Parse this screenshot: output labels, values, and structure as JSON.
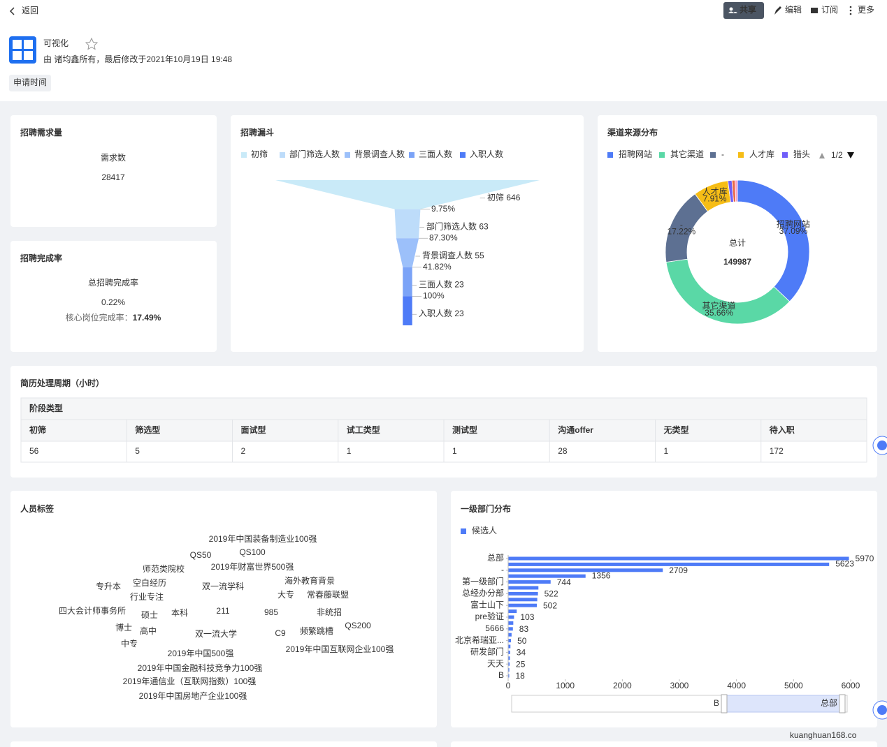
{
  "header": {
    "back": "返回",
    "actions": [
      "共享",
      "编辑",
      "订阅",
      "更多"
    ],
    "title": "可视化",
    "meta": "由 诸均鑫所有，最后修改于2021年10月19日 19:48",
    "filter": "申请时间"
  },
  "demand": {
    "title": "招聘需求量",
    "label": "需求数",
    "value": 28417
  },
  "completion": {
    "title": "招聘完成率",
    "label": "总招聘完成率",
    "value": "0.22%",
    "sub_label": "核心岗位完成率：",
    "sub_value": "17.49%"
  },
  "funnel": {
    "type": "funnel",
    "title": "招聘漏斗",
    "categories": [
      "初筛",
      "部门筛选人数",
      "背景调查人数",
      "三面人数",
      "入职人数"
    ],
    "values": [
      646,
      63,
      55,
      23,
      23
    ],
    "colors": [
      "#c9eaf8",
      "#bddcfa",
      "#9cc0fa",
      "#7ba3f7",
      "#4e7bf7"
    ],
    "rates": [
      9.75,
      87.3,
      41.82,
      100
    ],
    "rate_labels": [
      "9.75%",
      "87.30%",
      "41.82%",
      "100%"
    ]
  },
  "channel": {
    "type": "pie",
    "title": "渠道来源分布",
    "categories": [
      "招聘网站",
      "其它渠道",
      "-",
      "人才库",
      "猎头",
      null,
      null
    ],
    "values": [
      37.09,
      35.66,
      17.22,
      7.91,
      0.9,
      0.7,
      0.52
    ],
    "value_labels": [
      "37.09%",
      "35.66%",
      "17.22%",
      "7.91%",
      null,
      null,
      null
    ],
    "colors": [
      "#4e7bf7",
      "#5ad8a6",
      "#5d7092",
      "#f6bd16",
      "#6f5ef9",
      "#e8684a",
      "#ff9dc4"
    ],
    "legend_page": "1/2",
    "center_label": "总计",
    "total": 149987
  },
  "table": {
    "title": "简历处理周期（小时）",
    "group": "阶段类型",
    "columns": [
      "初筛",
      "筛选型",
      "面试型",
      "试工类型",
      "测试型",
      "沟通offer",
      "无类型",
      "待入职"
    ],
    "rows": [
      [
        56,
        5,
        2,
        1,
        1,
        28,
        1,
        172
      ]
    ]
  },
  "tags": {
    "title": "人员标签",
    "words": [
      {
        "text": "2019年中国装备制造业100强",
        "color": "#7b3fd6"
      },
      {
        "text": "QS50",
        "color": "#3c4d73"
      },
      {
        "text": "QS100",
        "color": "#e6a700"
      },
      {
        "text": "师范类院校",
        "color": "#f7b5c9"
      },
      {
        "text": "2019年财富世界500强",
        "color": "#3aa0d8"
      },
      {
        "text": "专升本",
        "color": "#a8e0c8"
      },
      {
        "text": "空白经历",
        "color": "#1a7a6e"
      },
      {
        "text": "双一流学科",
        "color": "#3dd68c"
      },
      {
        "text": "海外教育背景",
        "color": "#9fd8c4"
      },
      {
        "text": "行业专注",
        "color": "#3451b2"
      },
      {
        "text": "大专",
        "color": "#b7a0f0"
      },
      {
        "text": "常春藤联盟",
        "color": "#b84ac8"
      },
      {
        "text": "四大会计师事务所",
        "color": "#3b6ad8"
      },
      {
        "text": "硕士",
        "color": "#e6a700"
      },
      {
        "text": "本科",
        "color": "#333333"
      },
      {
        "text": "211",
        "color": "#4e7bf7"
      },
      {
        "text": "985",
        "color": "#a0d8e8"
      },
      {
        "text": "非统招",
        "color": "#f7c5b0"
      },
      {
        "text": "博士",
        "color": "#9fd4e8"
      },
      {
        "text": "高中",
        "color": "#c8a8f0"
      },
      {
        "text": "双一流大学",
        "color": "#b8c8f0"
      },
      {
        "text": "C9",
        "color": "#999999"
      },
      {
        "text": "频繁跳槽",
        "color": "#f08020"
      },
      {
        "text": "QS200",
        "color": "#a0a8b8"
      },
      {
        "text": "中专",
        "color": "#3cb080"
      },
      {
        "text": "2019年中国互联网企业100强",
        "color": "#6f3aa8"
      },
      {
        "text": "2019年中国500强",
        "color": "#f7d8a0"
      },
      {
        "text": "2019年中国金融科技竞争力100强",
        "color": "#b0d8f0"
      },
      {
        "text": "2019年通信业（互联网指数）100强",
        "color": "#f7e0b0"
      },
      {
        "text": "2019年中国房地产企业100强",
        "color": "#c0b0f0"
      }
    ]
  },
  "departments": {
    "type": "bar",
    "orientation": "horizontal",
    "title": "一级部门分布",
    "categories": [
      "总部",
      null,
      "-",
      null,
      "第一级部门",
      null,
      "总经办分部",
      null,
      "富士山下",
      null,
      "pre验证",
      null,
      "5666",
      null,
      "北京希瑞亚...",
      null,
      "研发部门",
      null,
      "天天",
      null,
      "B"
    ],
    "series": [
      {
        "name": "候选人",
        "color": "#4e7bf7",
        "values": [
          5970,
          5623,
          2709,
          1356,
          744,
          530,
          522,
          510,
          502,
          150,
          103,
          90,
          83,
          60,
          50,
          40,
          34,
          30,
          25,
          20,
          18
        ]
      }
    ],
    "xlim": [
      0,
      6000
    ],
    "xticks": [
      0,
      1000,
      2000,
      3000,
      4000,
      5000,
      6000
    ]
  },
  "watermark": "kuanghuan168.co"
}
